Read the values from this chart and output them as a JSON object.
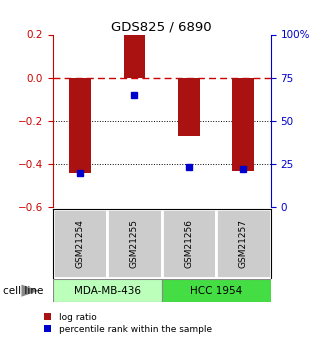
{
  "title": "GDS825 / 6890",
  "samples": [
    "GSM21254",
    "GSM21255",
    "GSM21256",
    "GSM21257"
  ],
  "log_ratios": [
    -0.44,
    0.2,
    -0.27,
    -0.435
  ],
  "percentile_ranks": [
    20,
    65,
    23,
    22
  ],
  "cell_lines": [
    {
      "name": "MDA-MB-436",
      "samples": [
        0,
        1
      ],
      "color": "#bbffbb"
    },
    {
      "name": "HCC 1954",
      "samples": [
        2,
        3
      ],
      "color": "#44dd44"
    }
  ],
  "bar_color": "#aa1111",
  "dot_color": "#0000cc",
  "left_ylim": [
    -0.6,
    0.2
  ],
  "right_ylim": [
    0,
    100
  ],
  "left_yticks": [
    -0.6,
    -0.4,
    -0.2,
    0.0,
    0.2
  ],
  "right_yticks": [
    0,
    25,
    50,
    75,
    100
  ],
  "right_yticklabels": [
    "0",
    "25",
    "50",
    "75",
    "100%"
  ],
  "hline_zero_color": "#cc0000",
  "hline_dotted_color": "#000000",
  "background_color": "#ffffff",
  "sample_box_color": "#cccccc",
  "cell_line_label": "cell line",
  "legend_log_ratio": "log ratio",
  "legend_percentile": "percentile rank within the sample"
}
